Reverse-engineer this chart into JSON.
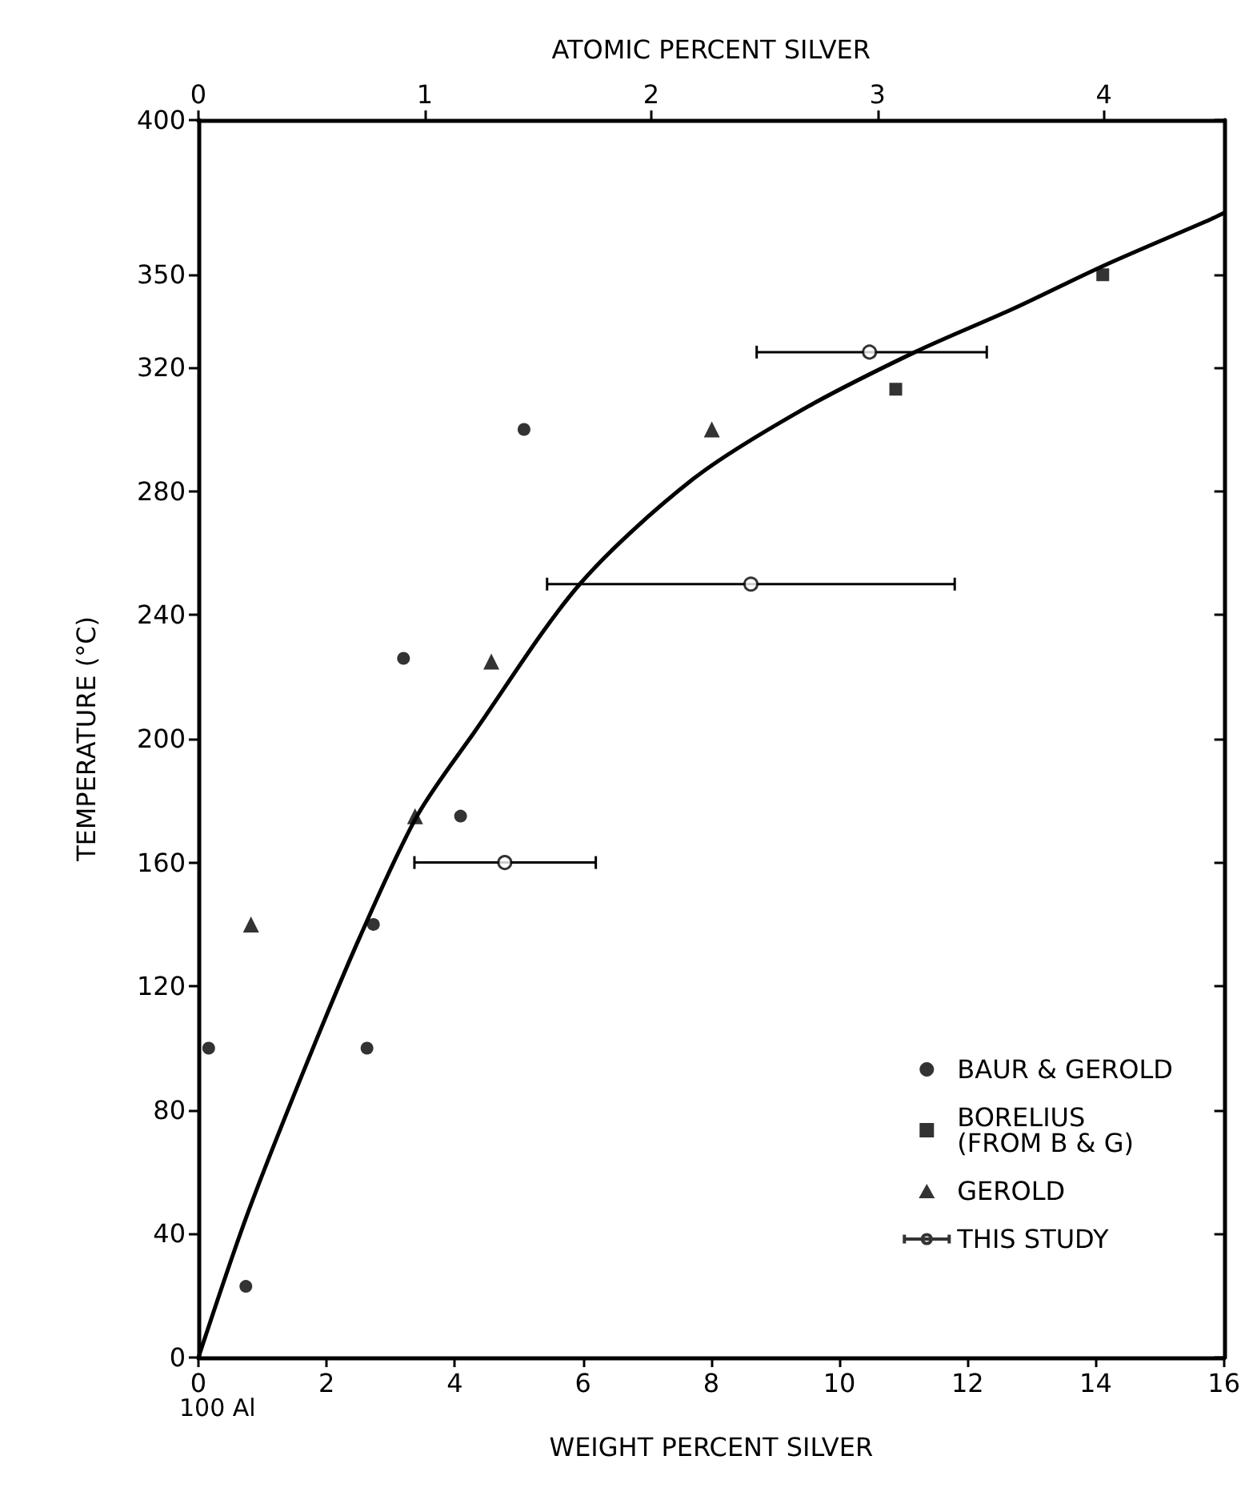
{
  "chart_data": {
    "type": "scatter",
    "xlabel": "WEIGHT PERCENT SILVER",
    "ylabel": "TEMPERATURE (°C)",
    "x2label": "ATOMIC PERCENT SILVER",
    "xlim": [
      0,
      16
    ],
    "xticks": [
      0,
      2,
      4,
      6,
      8,
      10,
      12,
      14,
      16
    ],
    "x2lim": [
      0,
      4.53
    ],
    "x2ticks": [
      0,
      1,
      2,
      3,
      4
    ],
    "ylim": [
      0,
      400
    ],
    "yticks": [
      0,
      40,
      80,
      120,
      160,
      200,
      240,
      280,
      320,
      350,
      400
    ],
    "grid": false,
    "legend": "bottom right",
    "annotations": [
      "100 Al"
    ],
    "series": [
      {
        "type": "line",
        "color": "#000000",
        "marker": "none",
        "line_style": "solid",
        "x": [
          0,
          0.74,
          1.63,
          2.52,
          3.41,
          4.3,
          5.95,
          7.72,
          9.39,
          11.18,
          12.71,
          14.13,
          15.8,
          16
        ],
        "values": [
          0,
          45,
          92,
          136,
          175,
          202,
          250,
          284,
          306,
          325,
          339,
          353,
          368,
          370
        ]
      },
      {
        "name": "BAUR & GEROLD",
        "color": "#000000",
        "marker": "circle",
        "x": [
          0.16,
          0.74,
          2.63,
          2.73,
          3.2,
          4.09,
          5.08
        ],
        "values": [
          100,
          23,
          100,
          140,
          226,
          175,
          300
        ]
      },
      {
        "name": "BORELIUS (FROM B & G)",
        "color": "#000000",
        "marker": "square",
        "x": [
          10.88,
          14.11
        ],
        "values": [
          313,
          350
        ]
      },
      {
        "name": "GEROLD",
        "color": "#000000",
        "marker": "triangle",
        "x": [
          0.82,
          3.38,
          4.57,
          8.01
        ],
        "values": [
          140,
          175,
          225,
          300
        ]
      },
      {
        "name": "THIS STUDY",
        "color": "#000000",
        "marker": "circle",
        "x": [
          4.78,
          8.62,
          10.47
        ],
        "values": [
          160,
          250,
          325
        ],
        "xerrors": [
          [
            3.37,
            6.2
          ],
          [
            5.44,
            11.8
          ],
          [
            8.71,
            12.3
          ]
        ]
      }
    ]
  }
}
